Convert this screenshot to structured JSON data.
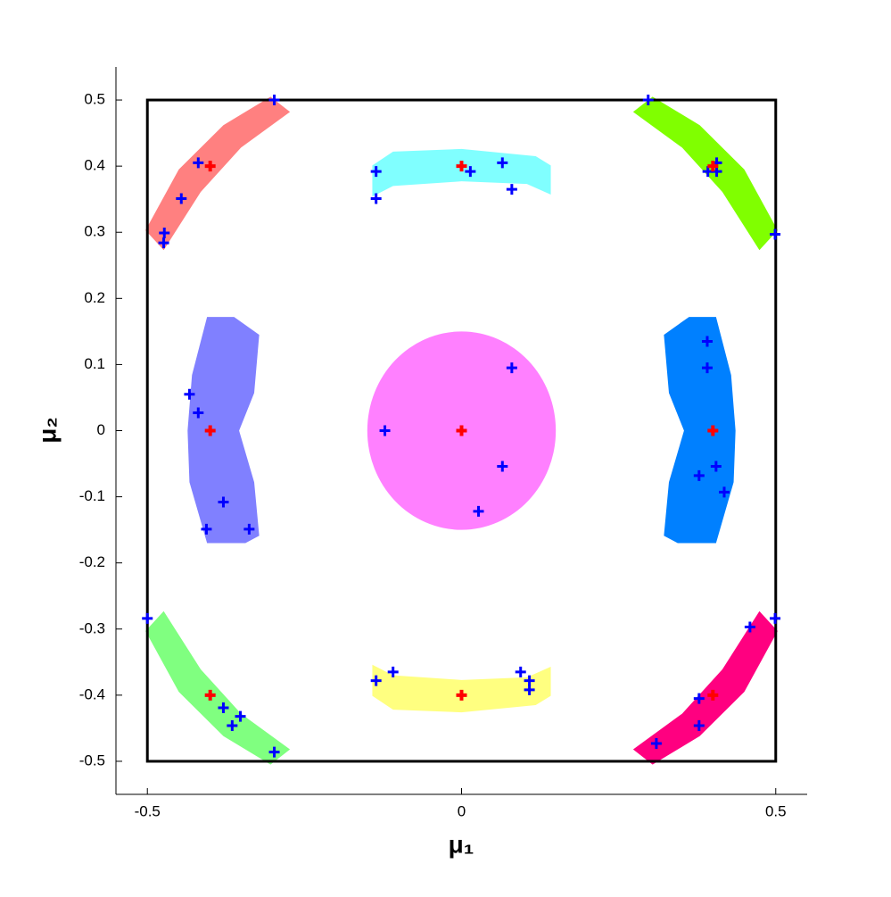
{
  "chart_data": {
    "type": "scatter",
    "x_label": "μ₁",
    "y_label": "μ₂",
    "xlim": [
      -0.55,
      0.55
    ],
    "ylim": [
      -0.55,
      0.55
    ],
    "xticks": [
      -0.5,
      0,
      0.5
    ],
    "yticks": [
      -0.5,
      -0.4,
      -0.3,
      -0.2,
      -0.1,
      0,
      0.1,
      0.2,
      0.3,
      0.4,
      0.5
    ],
    "box": {
      "x": [
        -0.5,
        0.5
      ],
      "y": [
        -0.5,
        0.5
      ],
      "color": "#000000"
    },
    "regions": [
      {
        "color": "#ff8080",
        "x": [
          -0.503,
          -0.45,
          -0.379,
          -0.304,
          -0.273,
          -0.351,
          -0.415,
          -0.474
        ],
        "y": [
          0.303,
          0.395,
          0.462,
          0.505,
          0.482,
          0.428,
          0.361,
          0.273
        ]
      },
      {
        "color": "#80ffff",
        "x": [
          -0.142,
          -0.109,
          0,
          0.118,
          0.142,
          0.142,
          0.104,
          0,
          -0.109,
          -0.142
        ],
        "y": [
          0.401,
          0.422,
          0.426,
          0.415,
          0.401,
          0.357,
          0.373,
          0.377,
          0.37,
          0.354
        ]
      },
      {
        "color": "#80ff00",
        "x": [
          0.503,
          0.45,
          0.379,
          0.304,
          0.273,
          0.351,
          0.415,
          0.474
        ],
        "y": [
          0.303,
          0.395,
          0.462,
          0.505,
          0.482,
          0.428,
          0.361,
          0.273
        ]
      },
      {
        "color": "#8080ff",
        "x": [
          -0.405,
          -0.362,
          -0.322,
          -0.33,
          -0.354,
          -0.33,
          -0.322,
          -0.344,
          -0.405,
          -0.433,
          -0.436,
          -0.429
        ],
        "y": [
          0.172,
          0.172,
          0.145,
          0.057,
          0,
          -0.078,
          -0.159,
          -0.17,
          -0.17,
          -0.078,
          0,
          0.084
        ]
      },
      {
        "color": "#0080ff",
        "x": [
          0.405,
          0.362,
          0.322,
          0.33,
          0.354,
          0.33,
          0.322,
          0.344,
          0.405,
          0.433,
          0.436,
          0.429
        ],
        "y": [
          0.172,
          0.172,
          0.145,
          0.057,
          0,
          -0.078,
          -0.159,
          -0.17,
          -0.17,
          -0.078,
          0,
          0.084
        ]
      },
      {
        "color": "#80ff80",
        "x": [
          -0.503,
          -0.45,
          -0.379,
          -0.304,
          -0.273,
          -0.351,
          -0.415,
          -0.474
        ],
        "y": [
          -0.303,
          -0.395,
          -0.462,
          -0.505,
          -0.482,
          -0.428,
          -0.361,
          -0.273
        ]
      },
      {
        "color": "#ffff80",
        "x": [
          -0.142,
          -0.109,
          0,
          0.118,
          0.142,
          0.142,
          0.104,
          0,
          -0.109,
          -0.142
        ],
        "y": [
          -0.401,
          -0.422,
          -0.426,
          -0.415,
          -0.401,
          -0.357,
          -0.373,
          -0.377,
          -0.37,
          -0.354
        ]
      },
      {
        "color": "#ff0080",
        "x": [
          0.503,
          0.45,
          0.379,
          0.304,
          0.273,
          0.351,
          0.415,
          0.474
        ],
        "y": [
          -0.303,
          -0.395,
          -0.462,
          -0.505,
          -0.482,
          -0.428,
          -0.361,
          -0.273
        ]
      }
    ],
    "circle": {
      "color": "#ff80ff",
      "center": [
        0,
        0
      ],
      "radius": 0.15
    },
    "series": [
      {
        "color": "#0000ff",
        "x": [
          -0.298,
          -0.419,
          -0.446,
          -0.473,
          -0.474,
          -0.136,
          -0.136,
          0.014,
          0.065,
          0.08,
          0.297,
          0.406,
          0.392,
          0.406,
          0.499,
          -0.433,
          -0.419,
          -0.379,
          -0.406,
          -0.338,
          0.08,
          -0.122,
          0.065,
          0.027,
          0.391,
          0.391,
          0.405,
          0.378,
          0.418,
          -0.5,
          -0.379,
          -0.352,
          -0.365,
          -0.298,
          -0.136,
          -0.109,
          0.094,
          0.108,
          0.108,
          0.499,
          0.459,
          0.378,
          0.378,
          0.31
        ],
        "y": [
          0.5,
          0.405,
          0.351,
          0.299,
          0.284,
          0.392,
          0.351,
          0.392,
          0.405,
          0.365,
          0.5,
          0.405,
          0.392,
          0.392,
          0.297,
          0.055,
          0.027,
          -0.108,
          -0.149,
          -0.149,
          0.095,
          0,
          -0.054,
          -0.122,
          0.135,
          0.095,
          -0.054,
          -0.068,
          -0.093,
          -0.284,
          -0.419,
          -0.432,
          -0.446,
          -0.486,
          -0.378,
          -0.365,
          -0.365,
          -0.378,
          -0.392,
          -0.284,
          -0.297,
          -0.405,
          -0.446,
          -0.473
        ]
      },
      {
        "color": "#ff0000",
        "x": [
          -0.4,
          0,
          0.4,
          -0.4,
          0,
          0.4,
          -0.4,
          0,
          0.4
        ],
        "y": [
          0.4,
          0.4,
          0.4,
          0,
          0,
          0,
          -0.4,
          -0.4,
          -0.4
        ]
      }
    ]
  }
}
